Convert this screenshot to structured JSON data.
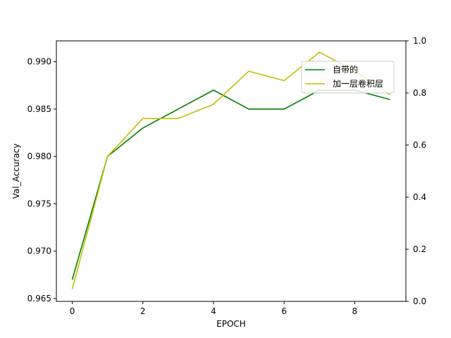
{
  "chart_data": {
    "type": "line",
    "title": "",
    "xlabel": "EPOCH",
    "ylabel": "Val_Accuracy",
    "x": [
      0,
      1,
      2,
      3,
      4,
      5,
      6,
      7,
      8,
      9
    ],
    "xlim": [
      -0.45,
      9.45
    ],
    "ylim": [
      0.9647,
      0.9922
    ],
    "y2lim": [
      0.0,
      1.0
    ],
    "xticks": [
      "0",
      "2",
      "4",
      "6",
      "8"
    ],
    "yticks": [
      "0.965",
      "0.970",
      "0.975",
      "0.980",
      "0.985",
      "0.990"
    ],
    "y2ticks": [
      "0.0",
      "0.2",
      "0.4",
      "0.6",
      "0.8",
      "1.0"
    ],
    "grid": false,
    "legend_position": "upper-right",
    "series": [
      {
        "name": "自带的",
        "color": "#008000",
        "values": [
          0.967,
          0.98,
          0.983,
          0.985,
          0.987,
          0.985,
          0.985,
          0.987,
          0.987,
          0.986
        ]
      },
      {
        "name": "加一层卷积层",
        "color": "#bfbf00",
        "values": [
          0.966,
          0.98,
          0.984,
          0.984,
          0.9855,
          0.989,
          0.988,
          0.991,
          0.989,
          0.9865
        ]
      }
    ]
  }
}
